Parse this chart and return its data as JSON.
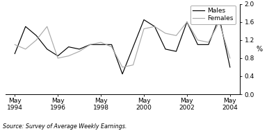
{
  "title": "",
  "source": "Source: Survey of Average Weekly Earnings.",
  "ylabel": "%",
  "ylim": [
    0.0,
    2.0
  ],
  "yticks": [
    0.0,
    0.4,
    0.8,
    1.2,
    1.6,
    2.0
  ],
  "xtick_labels": [
    "May\n1994",
    "May\n1996",
    "May\n1998",
    "May\n2000",
    "May\n2002",
    "May\n2004"
  ],
  "xtick_positions": [
    1994.33,
    1996.33,
    1998.33,
    2000.33,
    2002.33,
    2004.33
  ],
  "males_color": "#000000",
  "females_color": "#aaaaaa",
  "males_x": [
    1994.33,
    1994.83,
    1995.33,
    1995.83,
    1996.33,
    1996.83,
    1997.33,
    1997.83,
    1998.33,
    1998.83,
    1999.33,
    1999.83,
    2000.33,
    2000.83,
    2001.33,
    2001.83,
    2002.33,
    2002.83,
    2003.33,
    2003.83,
    2004.33
  ],
  "males_y": [
    0.9,
    1.5,
    1.3,
    1.0,
    0.85,
    1.05,
    1.0,
    1.1,
    1.1,
    1.1,
    0.45,
    1.05,
    1.65,
    1.5,
    1.0,
    0.95,
    1.6,
    1.1,
    1.1,
    1.7,
    0.6
  ],
  "females_x": [
    1994.33,
    1994.83,
    1995.33,
    1995.83,
    1996.33,
    1996.83,
    1997.33,
    1997.83,
    1998.33,
    1998.83,
    1999.33,
    1999.83,
    2000.33,
    2000.83,
    2001.33,
    2001.83,
    2002.33,
    2002.83,
    2003.33,
    2003.83,
    2004.33
  ],
  "females_y": [
    1.1,
    1.0,
    1.2,
    1.5,
    0.8,
    0.85,
    0.95,
    1.1,
    1.15,
    1.05,
    0.6,
    0.65,
    1.45,
    1.5,
    1.35,
    1.3,
    1.6,
    1.2,
    1.15,
    1.6,
    0.8
  ],
  "xlim": [
    1993.9,
    2004.8
  ],
  "figsize": [
    3.97,
    1.89
  ],
  "dpi": 100
}
